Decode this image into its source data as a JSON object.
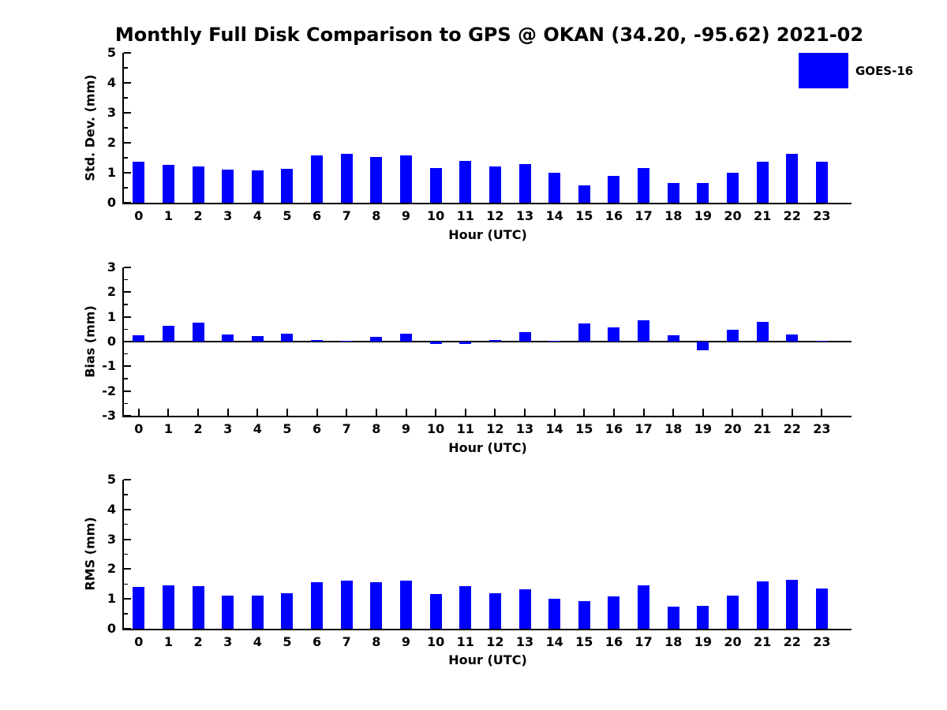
{
  "title": "Monthly Full Disk Comparison to GPS @ OKAN (34.20, -95.62) 2021-02",
  "legend": {
    "label": "GOES-16",
    "color": "#0000FF",
    "position": "upper right"
  },
  "chart_data": [
    {
      "type": "bar",
      "title": "Std. Dev. subplot",
      "ylabel": "Std. Dev. (mm)",
      "xlabel": "Hour (UTC)",
      "categories": [
        "0",
        "1",
        "2",
        "3",
        "4",
        "5",
        "6",
        "7",
        "8",
        "9",
        "10",
        "11",
        "12",
        "13",
        "14",
        "15",
        "16",
        "17",
        "18",
        "19",
        "20",
        "21",
        "22",
        "23"
      ],
      "values": [
        1.36,
        1.26,
        1.2,
        1.11,
        1.07,
        1.14,
        1.58,
        1.63,
        1.53,
        1.58,
        1.15,
        1.39,
        1.2,
        1.28,
        1.0,
        0.57,
        0.9,
        1.17,
        0.67,
        0.65,
        1.0,
        1.36,
        1.62,
        1.36
      ],
      "series_name": "GOES-16",
      "color": "#0000FF",
      "ylim": [
        0,
        5
      ],
      "yticks": [
        0,
        1,
        2,
        3,
        4,
        5
      ],
      "minor_tick_step": 0.5,
      "grid": false
    },
    {
      "type": "bar",
      "title": "Bias subplot",
      "ylabel": "Bias (mm)",
      "xlabel": "Hour (UTC)",
      "categories": [
        "0",
        "1",
        "2",
        "3",
        "4",
        "5",
        "6",
        "7",
        "8",
        "9",
        "10",
        "11",
        "12",
        "13",
        "14",
        "15",
        "16",
        "17",
        "18",
        "19",
        "20",
        "21",
        "22",
        "23"
      ],
      "values": [
        0.24,
        0.64,
        0.77,
        0.28,
        0.23,
        0.31,
        0.06,
        0.02,
        0.18,
        0.31,
        -0.1,
        -0.1,
        0.06,
        0.37,
        0.02,
        0.73,
        0.58,
        0.87,
        0.27,
        -0.35,
        0.47,
        0.79,
        0.3,
        0.04
      ],
      "series_name": "GOES-16",
      "color": "#0000FF",
      "ylim": [
        -3,
        3
      ],
      "yticks": [
        3,
        2,
        1,
        0,
        -1,
        -2,
        -3
      ],
      "minor_tick_step": 0.5,
      "zero_line": true,
      "grid": false
    },
    {
      "type": "bar",
      "title": "RMS subplot",
      "ylabel": "RMS (mm)",
      "xlabel": "Hour (UTC)",
      "categories": [
        "0",
        "1",
        "2",
        "3",
        "4",
        "5",
        "6",
        "7",
        "8",
        "9",
        "10",
        "11",
        "12",
        "13",
        "14",
        "15",
        "16",
        "17",
        "18",
        "19",
        "20",
        "21",
        "22",
        "23"
      ],
      "values": [
        1.39,
        1.45,
        1.42,
        1.12,
        1.12,
        1.2,
        1.57,
        1.62,
        1.57,
        1.62,
        1.17,
        1.43,
        1.2,
        1.31,
        1.01,
        0.93,
        1.08,
        1.46,
        0.73,
        0.76,
        1.12,
        1.6,
        1.64,
        1.35
      ],
      "series_name": "GOES-16",
      "color": "#0000FF",
      "ylim": [
        0,
        5
      ],
      "yticks": [
        0,
        1,
        2,
        3,
        4,
        5
      ],
      "minor_tick_step": 0.5,
      "grid": false
    }
  ]
}
